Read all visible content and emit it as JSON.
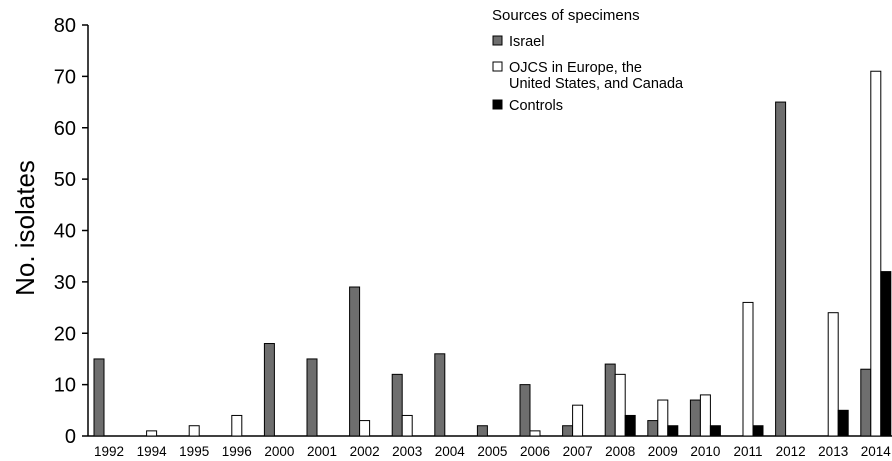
{
  "chart_data": {
    "type": "bar",
    "ylabel": "No. isolates",
    "ylim": [
      0,
      80
    ],
    "yticks": [
      "0",
      "10",
      "20",
      "30",
      "40",
      "50",
      "60",
      "70",
      "80"
    ],
    "categories": [
      "1992",
      "1994",
      "1995",
      "1996",
      "2000",
      "2001",
      "2002",
      "2003",
      "2004",
      "2005",
      "2006",
      "2007",
      "2008",
      "2009",
      "2010",
      "2011",
      "2012",
      "2013",
      "2014"
    ],
    "legend_title": "Sources of specimens",
    "legend_position": "top-right",
    "series": [
      {
        "name": "Israel",
        "color": "#6e6e6e",
        "values": [
          15,
          0,
          0,
          0,
          18,
          15,
          29,
          12,
          16,
          2,
          10,
          2,
          14,
          3,
          7,
          0,
          65,
          0,
          13
        ]
      },
      {
        "name": "OJCS in Europe, the United States, and Canada",
        "color": "#ffffff",
        "values": [
          0,
          1,
          2,
          4,
          0,
          0,
          3,
          4,
          0,
          0,
          1,
          6,
          12,
          7,
          8,
          26,
          0,
          24,
          71
        ]
      },
      {
        "name": "Controls",
        "color": "#000000",
        "values": [
          0,
          0,
          0,
          0,
          0,
          0,
          0,
          0,
          0,
          0,
          0,
          0,
          4,
          2,
          2,
          2,
          0,
          5,
          32
        ]
      }
    ]
  }
}
